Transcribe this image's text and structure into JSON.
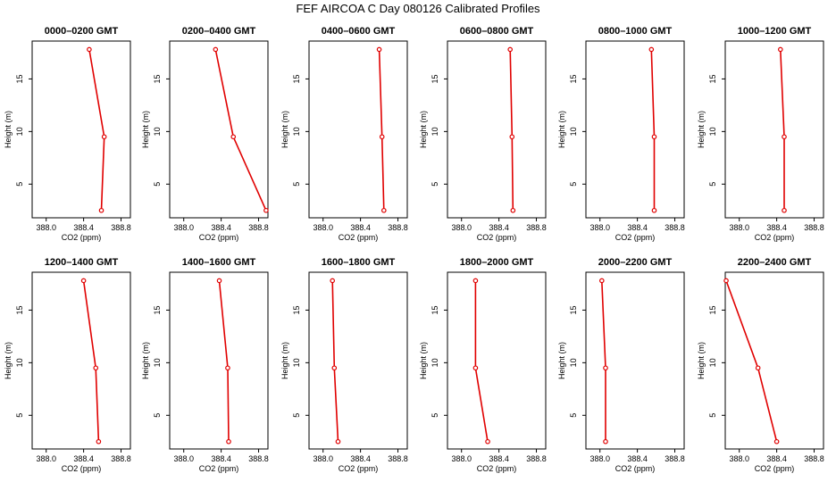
{
  "chart_data": {
    "title": "FEF AIRCOA C  Day 080126  Calibrated Profiles",
    "type": "line",
    "xlabel": "CO2 (ppm)",
    "ylabel": "Height (m)",
    "xlim": [
      387.85,
      388.9
    ],
    "ylim": [
      1.8,
      18.6
    ],
    "xticks": [
      388.0,
      388.4,
      388.8
    ],
    "xtick_labels": [
      "388.0",
      "388.4",
      "388.8"
    ],
    "yticks": [
      5,
      10,
      15
    ],
    "ytick_labels": [
      "5",
      "10",
      "15"
    ],
    "series_color": "#e00000",
    "panels": [
      {
        "title": "0000–0200 GMT",
        "co2": [
          388.59,
          388.62,
          388.46
        ],
        "height": [
          2.5,
          9.5,
          17.8
        ]
      },
      {
        "title": "0200–0400 GMT",
        "co2": [
          388.88,
          388.53,
          388.34
        ],
        "height": [
          2.5,
          9.5,
          17.8
        ]
      },
      {
        "title": "0400–0600 GMT",
        "co2": [
          388.65,
          388.63,
          388.6
        ],
        "height": [
          2.5,
          9.5,
          17.8
        ]
      },
      {
        "title": "0600–0800 GMT",
        "co2": [
          388.55,
          388.54,
          388.52
        ],
        "height": [
          2.5,
          9.5,
          17.8
        ]
      },
      {
        "title": "0800–1000 GMT",
        "co2": [
          388.58,
          388.58,
          388.55
        ],
        "height": [
          2.5,
          9.5,
          17.8
        ]
      },
      {
        "title": "1000–1200 GMT",
        "co2": [
          388.48,
          388.48,
          388.44
        ],
        "height": [
          2.5,
          9.5,
          17.8
        ]
      },
      {
        "title": "1200–1400 GMT",
        "co2": [
          388.56,
          388.53,
          388.4
        ],
        "height": [
          2.5,
          9.5,
          17.8
        ]
      },
      {
        "title": "1400–1600 GMT",
        "co2": [
          388.48,
          388.47,
          388.38
        ],
        "height": [
          2.5,
          9.5,
          17.8
        ]
      },
      {
        "title": "1600–1800 GMT",
        "co2": [
          388.16,
          388.12,
          388.1
        ],
        "height": [
          2.5,
          9.5,
          17.8
        ]
      },
      {
        "title": "1800–2000 GMT",
        "co2": [
          388.28,
          388.15,
          388.15
        ],
        "height": [
          2.5,
          9.5,
          17.8
        ]
      },
      {
        "title": "2000–2200 GMT",
        "co2": [
          388.06,
          388.06,
          388.02
        ],
        "height": [
          2.5,
          9.5,
          17.8
        ]
      },
      {
        "title": "2200–2400 GMT",
        "co2": [
          388.4,
          388.2,
          387.86
        ],
        "height": [
          2.5,
          9.5,
          17.8
        ]
      }
    ]
  }
}
